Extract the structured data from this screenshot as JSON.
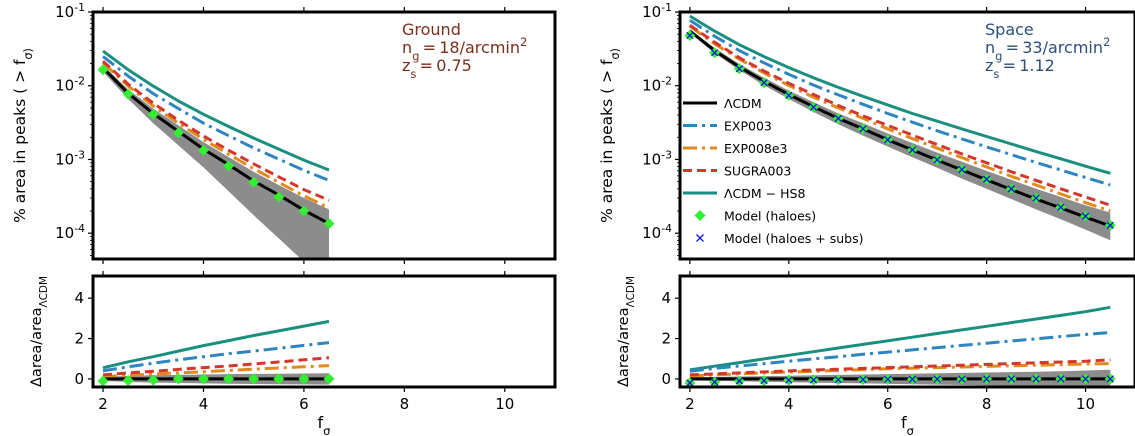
{
  "figure": {
    "xlabel": "f_σ",
    "xlim": [
      1.8,
      11.0
    ],
    "xticks": [
      2,
      4,
      6,
      8,
      10
    ],
    "colors": {
      "lcdm": "#000000",
      "exp003": "#2e86c1",
      "exp008e3": "#e08a1e",
      "sugra003": "#d2382e",
      "lcdm_hs8": "#1b8f7f",
      "model_haloes": "#33ee33",
      "model_haloes_subs": "#1515e6",
      "band": "#8c8c8c",
      "ground_label": "#7a2e1a",
      "space_label": "#2b4f7a"
    }
  },
  "panels": [
    {
      "id": "ground",
      "label_lines": [
        "Ground",
        "n_g = 18/arcmin^2",
        "z_s = 0.75"
      ],
      "label_color": "ground_label",
      "top": {
        "ylabel": "% area in peaks ( > f_σ)",
        "yscale": "log",
        "ylim_exp": [
          -4.35,
          -1.0
        ],
        "yticks_exp": [
          -4,
          -3,
          -2,
          -1
        ]
      },
      "bottom": {
        "ylabel": "Δarea/area_ΛCDM",
        "ylim": [
          -0.4,
          5.1
        ],
        "yticks": [
          0,
          2,
          4
        ]
      }
    },
    {
      "id": "space",
      "label_lines": [
        "Space",
        "n_g = 33/arcmin^2",
        "z_s = 1.12"
      ],
      "label_color": "space_label",
      "top": {
        "ylabel": "% area in peaks ( > f_σ)",
        "yscale": "log",
        "ylim_exp": [
          -4.35,
          -1.0
        ],
        "yticks_exp": [
          -4,
          -3,
          -2,
          -1
        ]
      },
      "bottom": {
        "ylabel": "Δarea/area_ΛCDM",
        "ylim": [
          -0.4,
          5.1
        ],
        "yticks": [
          0,
          2,
          4
        ]
      }
    }
  ],
  "legend": {
    "placement": "right panel, center-left",
    "entries": [
      {
        "key": "lcdm",
        "label": "ΛCDM",
        "marker": "line"
      },
      {
        "key": "exp003",
        "label": "EXP003",
        "marker": "dashdot"
      },
      {
        "key": "exp008e3",
        "label": "EXP008e3",
        "marker": "dashdot"
      },
      {
        "key": "sugra003",
        "label": "SUGRA003",
        "marker": "dashed"
      },
      {
        "key": "lcdm_hs8",
        "label": "ΛCDM − HS8",
        "marker": "line"
      },
      {
        "key": "model_haloes",
        "label": "Model (haloes)",
        "marker": "diamond"
      },
      {
        "key": "model_haloes_subs",
        "label": "Model (haloes + subs)",
        "marker": "cross"
      }
    ]
  },
  "chart_data": [
    {
      "type": "line",
      "panel": "ground-top",
      "yscale": "log",
      "x": [
        2.0,
        2.5,
        3.0,
        3.5,
        4.0,
        4.5,
        5.0,
        5.5,
        6.0,
        6.5
      ],
      "series": [
        {
          "name": "ΛCDM",
          "key": "lcdm",
          "style": "solid",
          "values": [
            0.0175,
            0.0079,
            0.0042,
            0.0024,
            0.00138,
            0.00085,
            0.00051,
            0.00033,
            0.000205,
            0.000135
          ]
        },
        {
          "name": "EXP003",
          "key": "exp003",
          "style": "dashdot",
          "values": [
            0.025,
            0.0135,
            0.0078,
            0.0049,
            0.0031,
            0.0021,
            0.00143,
            0.00101,
            0.00071,
            0.00052
          ]
        },
        {
          "name": "EXP008e3",
          "key": "exp008e3",
          "style": "dashdot",
          "values": [
            0.0205,
            0.0099,
            0.0053,
            0.0031,
            0.00187,
            0.00118,
            0.00075,
            0.00049,
            0.00032,
            0.00022
          ]
        },
        {
          "name": "SUGRA003",
          "key": "sugra003",
          "style": "dashed",
          "values": [
            0.0215,
            0.0105,
            0.0058,
            0.0034,
            0.00208,
            0.00133,
            0.00087,
            0.00058,
            0.00039,
            0.00028
          ]
        },
        {
          "name": "ΛCDM − HS8",
          "key": "lcdm_hs8",
          "style": "solid",
          "values": [
            0.0295,
            0.0165,
            0.0099,
            0.0062,
            0.0041,
            0.0028,
            0.00195,
            0.00138,
            0.00098,
            0.00072
          ]
        },
        {
          "name": "Model (haloes)",
          "key": "model_haloes",
          "style": "diamond",
          "values": [
            0.0165,
            0.0077,
            0.0041,
            0.0023,
            0.00133,
            0.00082,
            0.00049,
            0.00031,
            0.0002,
            0.000135
          ]
        }
      ],
      "band": {
        "x": [
          2.0,
          2.5,
          3.0,
          3.5,
          4.0,
          4.5,
          5.0,
          5.5,
          6.0,
          6.5
        ],
        "upper": [
          0.019,
          0.0089,
          0.0049,
          0.0029,
          0.00172,
          0.00108,
          0.00068,
          0.00045,
          0.0003,
          0.00021
        ],
        "lower": [
          0.0155,
          0.0066,
          0.0031,
          0.00155,
          0.00078,
          0.00037,
          0.000175,
          8.5e-05,
          4.1e-05,
          2e-05
        ]
      }
    },
    {
      "type": "line",
      "panel": "ground-bottom",
      "x": [
        2.0,
        2.5,
        3.0,
        3.5,
        4.0,
        4.5,
        5.0,
        5.5,
        6.0,
        6.5
      ],
      "series": [
        {
          "name": "ΛCDM",
          "key": "lcdm",
          "style": "solid",
          "values": [
            0,
            0,
            0,
            0,
            0,
            0,
            0,
            0,
            0,
            0
          ]
        },
        {
          "name": "EXP003",
          "key": "exp003",
          "style": "dashdot",
          "values": [
            0.4,
            0.6,
            0.78,
            0.95,
            1.1,
            1.25,
            1.38,
            1.52,
            1.66,
            1.8
          ]
        },
        {
          "name": "EXP008e3",
          "key": "exp008e3",
          "style": "dashdot",
          "values": [
            0.12,
            0.18,
            0.24,
            0.3,
            0.36,
            0.42,
            0.48,
            0.54,
            0.6,
            0.66
          ]
        },
        {
          "name": "SUGRA003",
          "key": "sugra003",
          "style": "dashed",
          "values": [
            0.2,
            0.3,
            0.38,
            0.47,
            0.56,
            0.64,
            0.74,
            0.84,
            0.95,
            1.05
          ]
        },
        {
          "name": "ΛCDM − HS8",
          "key": "lcdm_hs8",
          "style": "solid",
          "values": [
            0.55,
            0.85,
            1.1,
            1.38,
            1.65,
            1.9,
            2.15,
            2.38,
            2.62,
            2.85
          ]
        },
        {
          "name": "Model (haloes)",
          "key": "model_haloes",
          "style": "diamond",
          "values": [
            -0.1,
            -0.08,
            -0.06,
            0.0,
            0.0,
            0.0,
            0.0,
            0.0,
            0.0,
            0.0
          ]
        }
      ],
      "band": {
        "x": [
          2.0,
          2.5,
          3.0,
          3.5,
          4.0,
          4.5,
          5.0,
          5.5,
          6.0,
          6.5
        ],
        "upper": [
          0.1,
          0.15,
          0.18,
          0.2,
          0.22,
          0.24,
          0.25,
          0.26,
          0.27,
          0.28
        ],
        "lower": [
          -0.1,
          -0.15,
          -0.18,
          -0.2,
          -0.22,
          -0.24,
          -0.25,
          -0.26,
          -0.27,
          -0.28
        ]
      }
    },
    {
      "type": "line",
      "panel": "space-top",
      "yscale": "log",
      "x": [
        2.0,
        2.5,
        3.0,
        3.5,
        4.0,
        4.5,
        5.0,
        5.5,
        6.0,
        6.5,
        7.0,
        7.5,
        8.0,
        8.5,
        9.0,
        9.5,
        10.0,
        10.5
      ],
      "series": [
        {
          "name": "ΛCDM",
          "key": "lcdm",
          "style": "solid",
          "values": [
            0.055,
            0.03,
            0.018,
            0.0115,
            0.0076,
            0.0052,
            0.0036,
            0.0026,
            0.00185,
            0.00135,
            0.00098,
            0.00072,
            0.00053,
            0.00039,
            0.00029,
            0.00022,
            0.000165,
            0.000125
          ]
        },
        {
          "name": "EXP003",
          "key": "exp003",
          "style": "dashdot",
          "values": [
            0.077,
            0.047,
            0.03,
            0.0204,
            0.0143,
            0.0102,
            0.0075,
            0.0056,
            0.0042,
            0.0032,
            0.00245,
            0.0019,
            0.00148,
            0.00116,
            0.00091,
            0.00072,
            0.00057,
            0.00045
          ]
        },
        {
          "name": "EXP008e3",
          "key": "exp008e3",
          "style": "dashdot",
          "values": [
            0.064,
            0.037,
            0.023,
            0.0149,
            0.0101,
            0.007,
            0.005,
            0.0036,
            0.0026,
            0.00192,
            0.00142,
            0.00106,
            0.00079,
            0.00059,
            0.00045,
            0.00034,
            0.00026,
            0.0002
          ]
        },
        {
          "name": "SUGRA003",
          "key": "sugra003",
          "style": "dashed",
          "values": [
            0.066,
            0.039,
            0.024,
            0.0158,
            0.0108,
            0.0076,
            0.0054,
            0.0039,
            0.0029,
            0.00214,
            0.00159,
            0.00119,
            0.0009,
            0.00068,
            0.00052,
            0.0004,
            0.00031,
            0.00024
          ]
        },
        {
          "name": "ΛCDM − HS8",
          "key": "lcdm_hs8",
          "style": "solid",
          "values": [
            0.088,
            0.055,
            0.036,
            0.0248,
            0.0176,
            0.0128,
            0.0095,
            0.0072,
            0.0055,
            0.0042,
            0.0033,
            0.0026,
            0.00205,
            0.00162,
            0.00128,
            0.00102,
            0.00081,
            0.00065
          ]
        },
        {
          "name": "Model (haloes)",
          "key": "model_haloes",
          "style": "diamond",
          "values": [
            0.048,
            0.028,
            0.017,
            0.011,
            0.0074,
            0.0051,
            0.0036,
            0.0026,
            0.00185,
            0.00135,
            0.00099,
            0.00073,
            0.00054,
            0.0004,
            0.0003,
            0.000225,
            0.00017,
            0.000128
          ]
        },
        {
          "name": "Model (haloes + subs)",
          "key": "model_haloes_subs",
          "style": "cross",
          "values": [
            0.048,
            0.028,
            0.017,
            0.011,
            0.0074,
            0.0051,
            0.0036,
            0.0026,
            0.00185,
            0.00135,
            0.00099,
            0.00073,
            0.00054,
            0.0004,
            0.0003,
            0.000225,
            0.00017,
            0.000128
          ]
        }
      ],
      "band": {
        "x": [
          2.0,
          2.5,
          3.0,
          3.5,
          4.0,
          4.5,
          5.0,
          5.5,
          6.0,
          6.5,
          7.0,
          7.5,
          8.0,
          8.5,
          9.0,
          9.5,
          10.0,
          10.5
        ],
        "upper": [
          0.058,
          0.0325,
          0.0197,
          0.0128,
          0.0086,
          0.006,
          0.0042,
          0.0031,
          0.00225,
          0.00167,
          0.00124,
          0.00093,
          0.0007,
          0.00053,
          0.0004,
          0.00031,
          0.00024,
          0.00019
        ],
        "lower": [
          0.052,
          0.0276,
          0.0163,
          0.0101,
          0.0066,
          0.0044,
          0.003,
          0.00211,
          0.0015,
          0.00107,
          0.00077,
          0.00055,
          0.0004,
          0.00029,
          0.00021,
          0.000155,
          0.000112,
          8e-05
        ]
      }
    },
    {
      "type": "line",
      "panel": "space-bottom",
      "x": [
        2.0,
        2.5,
        3.0,
        3.5,
        4.0,
        4.5,
        5.0,
        5.5,
        6.0,
        6.5,
        7.0,
        7.5,
        8.0,
        8.5,
        9.0,
        9.5,
        10.0,
        10.5
      ],
      "series": [
        {
          "name": "ΛCDM",
          "key": "lcdm",
          "style": "solid",
          "values": [
            0,
            0,
            0,
            0,
            0,
            0,
            0,
            0,
            0,
            0,
            0,
            0,
            0,
            0,
            0,
            0,
            0,
            0
          ]
        },
        {
          "name": "EXP003",
          "key": "exp003",
          "style": "dashdot",
          "values": [
            0.38,
            0.52,
            0.64,
            0.76,
            0.88,
            0.99,
            1.1,
            1.22,
            1.33,
            1.44,
            1.55,
            1.66,
            1.77,
            1.88,
            1.99,
            2.1,
            2.2,
            2.3
          ]
        },
        {
          "name": "EXP008e3",
          "key": "exp008e3",
          "style": "dashdot",
          "values": [
            0.15,
            0.2,
            0.25,
            0.3,
            0.34,
            0.38,
            0.42,
            0.46,
            0.5,
            0.53,
            0.56,
            0.59,
            0.62,
            0.65,
            0.68,
            0.71,
            0.74,
            0.76
          ]
        },
        {
          "name": "SUGRA003",
          "key": "sugra003",
          "style": "dashed",
          "values": [
            0.2,
            0.25,
            0.3,
            0.35,
            0.4,
            0.44,
            0.48,
            0.52,
            0.56,
            0.6,
            0.64,
            0.68,
            0.72,
            0.76,
            0.8,
            0.84,
            0.88,
            0.95
          ]
        },
        {
          "name": "ΛCDM − HS8",
          "key": "lcdm_hs8",
          "style": "solid",
          "values": [
            0.45,
            0.63,
            0.81,
            0.99,
            1.17,
            1.35,
            1.53,
            1.71,
            1.89,
            2.07,
            2.25,
            2.43,
            2.61,
            2.79,
            2.97,
            3.15,
            3.33,
            3.55
          ]
        },
        {
          "name": "Model (haloes)",
          "key": "model_haloes",
          "style": "diamond",
          "values": [
            -0.2,
            -0.15,
            -0.1,
            -0.08,
            -0.06,
            -0.05,
            -0.04,
            -0.03,
            -0.02,
            -0.02,
            -0.01,
            -0.01,
            0.0,
            0.0,
            0.0,
            0.0,
            0.0,
            0.0
          ]
        },
        {
          "name": "Model (haloes + subs)",
          "key": "model_haloes_subs",
          "style": "cross",
          "values": [
            -0.2,
            -0.15,
            -0.1,
            -0.08,
            -0.06,
            -0.05,
            -0.04,
            -0.03,
            -0.02,
            -0.02,
            -0.01,
            -0.01,
            0.0,
            0.0,
            0.0,
            0.0,
            0.0,
            0.0
          ]
        }
      ],
      "band": {
        "x": [
          2.0,
          2.5,
          3.0,
          3.5,
          4.0,
          4.5,
          5.0,
          5.5,
          6.0,
          6.5,
          7.0,
          7.5,
          8.0,
          8.5,
          9.0,
          9.5,
          10.0,
          10.5
        ],
        "upper": [
          0.08,
          0.1,
          0.12,
          0.14,
          0.16,
          0.18,
          0.2,
          0.22,
          0.24,
          0.26,
          0.28,
          0.3,
          0.32,
          0.34,
          0.36,
          0.38,
          0.42,
          0.45
        ],
        "lower": [
          -0.08,
          -0.1,
          -0.12,
          -0.14,
          -0.16,
          -0.18,
          -0.2,
          -0.22,
          -0.24,
          -0.26,
          -0.28,
          -0.3,
          -0.32,
          -0.34,
          -0.36,
          -0.38,
          -0.42,
          -0.45
        ]
      }
    }
  ]
}
